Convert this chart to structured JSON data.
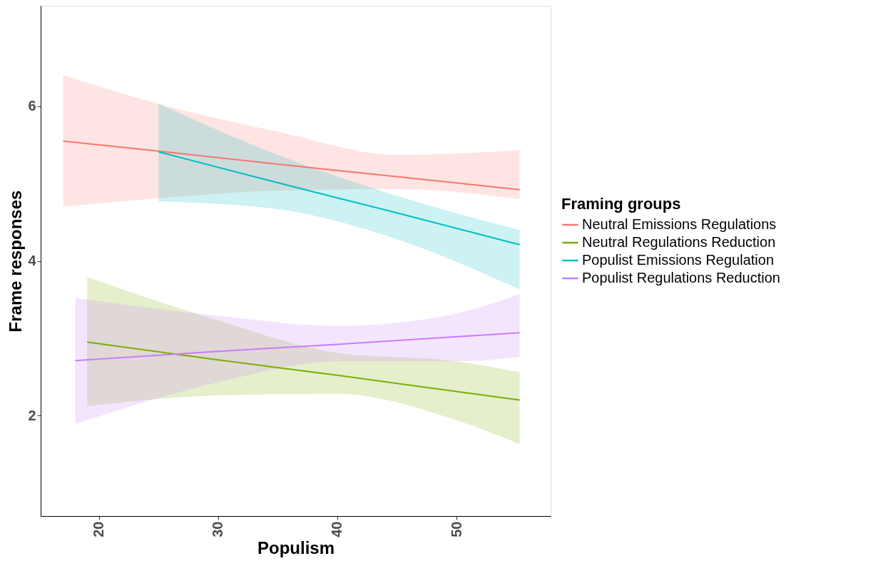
{
  "chart_data": {
    "type": "line",
    "xlabel": "Populism",
    "ylabel": "Frame responses",
    "legend_title": "Framing groups",
    "legend": "right",
    "grid": false,
    "xlim": [
      15.1,
      57.9
    ],
    "ylim": [
      0.7,
      7.3
    ],
    "xticks": [
      20,
      30,
      40,
      50
    ],
    "yticks": [
      2,
      4,
      6
    ],
    "series": [
      {
        "name": "Neutral Emissions Regulations",
        "color": "#f8766d",
        "x": [
          17,
          25,
          35,
          45,
          55.3
        ],
        "values": [
          5.55,
          5.42,
          5.25,
          5.09,
          4.92
        ],
        "lower": [
          4.7,
          4.81,
          4.91,
          4.93,
          4.8
        ],
        "upper": [
          6.4,
          6.03,
          5.67,
          5.37,
          5.43
        ]
      },
      {
        "name": "Neutral Regulations Reduction",
        "color": "#7cae00",
        "x": [
          19,
          30,
          40,
          50,
          55.3
        ],
        "values": [
          2.95,
          2.72,
          2.52,
          2.31,
          2.2
        ],
        "lower": [
          2.12,
          2.26,
          2.28,
          1.94,
          1.63
        ],
        "upper": [
          3.79,
          3.23,
          2.81,
          2.7,
          2.56
        ]
      },
      {
        "name": "Populist Emissions Regulation",
        "color": "#00bfc4",
        "x": [
          25,
          35,
          45,
          55.3
        ],
        "values": [
          5.41,
          5.01,
          4.62,
          4.21
        ],
        "lower": [
          4.77,
          4.67,
          4.28,
          3.63
        ],
        "upper": [
          6.03,
          5.37,
          4.84,
          4.4
        ]
      },
      {
        "name": "Populist Regulations Reduction",
        "color": "#c77cff",
        "x": [
          18,
          30,
          40,
          50,
          55.3
        ],
        "values": [
          2.71,
          2.83,
          2.92,
          3.02,
          3.07
        ],
        "lower": [
          1.89,
          2.43,
          2.7,
          2.7,
          2.76
        ],
        "upper": [
          3.52,
          3.29,
          3.16,
          3.32,
          3.57
        ]
      }
    ]
  }
}
